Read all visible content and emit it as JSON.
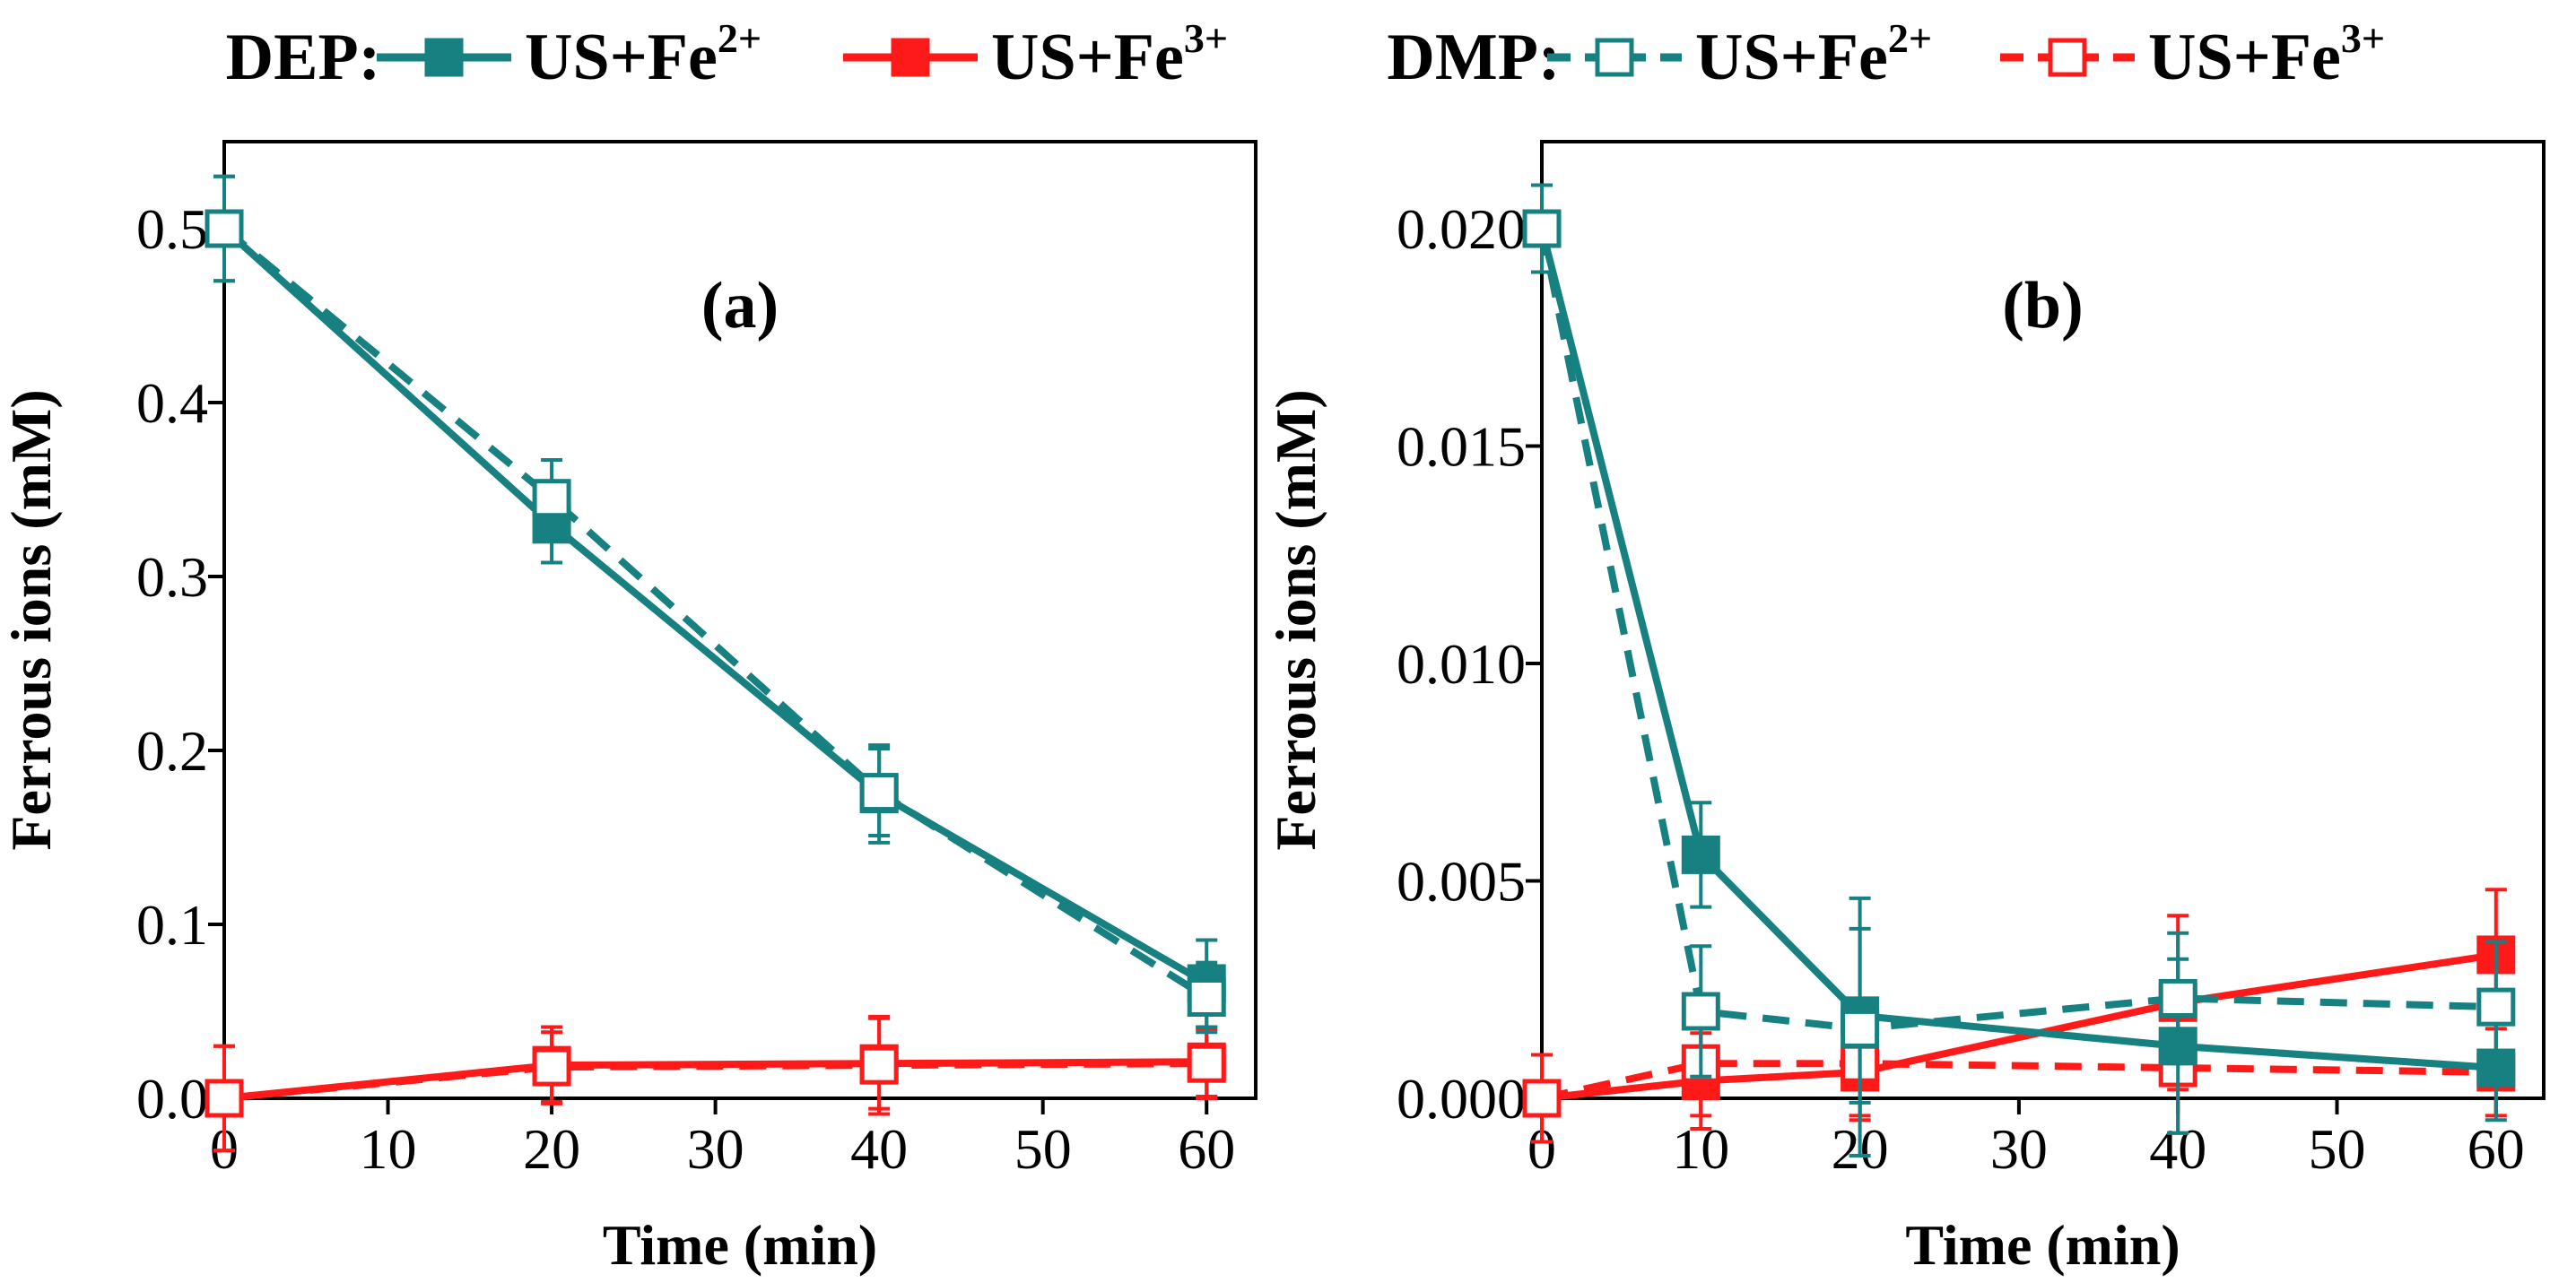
{
  "colors": {
    "teal": "#178080",
    "red": "#ff1a1a"
  },
  "legend": {
    "groups": [
      {
        "label": "DEP:",
        "entries": [
          {
            "name": "DEP US+Fe2+",
            "text": "US+Fe",
            "sup": "2+",
            "color": "#178080",
            "dashed": false,
            "filled": true
          },
          {
            "name": "DEP US+Fe3+",
            "text": "US+Fe",
            "sup": "3+",
            "color": "#ff1a1a",
            "dashed": false,
            "filled": true
          }
        ]
      },
      {
        "label": "DMP:",
        "entries": [
          {
            "name": "DMP US+Fe2+",
            "text": "US+Fe",
            "sup": "2+",
            "color": "#178080",
            "dashed": true,
            "filled": false
          },
          {
            "name": "DMP US+Fe3+",
            "text": "US+Fe",
            "sup": "3+",
            "color": "#ff1a1a",
            "dashed": true,
            "filled": false
          }
        ]
      }
    ]
  },
  "chart_data": [
    {
      "type": "line",
      "panel_label": "(a)",
      "xlabel": "Time (min)",
      "ylabel": "Ferrous ions (mM)",
      "xlim": [
        0,
        63
      ],
      "ylim": [
        0,
        0.55
      ],
      "xticks": [
        0,
        10,
        20,
        30,
        40,
        50,
        60
      ],
      "xtick_labels": [
        "0",
        "10",
        "20",
        "30",
        "40",
        "50",
        "60"
      ],
      "yticks": [
        0,
        0.1,
        0.2,
        0.3,
        0.4,
        0.5
      ],
      "ytick_labels": [
        "0.0",
        "0.1",
        "0.2",
        "0.3",
        "0.4",
        "0.5"
      ],
      "series": [
        {
          "name": "DEP US+Fe2+",
          "color": "#178080",
          "dashed": false,
          "filled": true,
          "x": [
            0,
            20,
            40,
            60
          ],
          "y": [
            0.5,
            0.33,
            0.175,
            0.066
          ],
          "err": [
            0.03,
            0.022,
            0.028,
            0.025
          ]
        },
        {
          "name": "DMP US+Fe2+",
          "color": "#178080",
          "dashed": true,
          "filled": false,
          "x": [
            0,
            20,
            40,
            60
          ],
          "y": [
            0.5,
            0.345,
            0.176,
            0.058
          ],
          "err": [
            0.03,
            0.022,
            0.025,
            0.02
          ]
        },
        {
          "name": "DEP US+Fe3+",
          "color": "#ff1a1a",
          "dashed": false,
          "filled": true,
          "x": [
            0,
            20,
            40,
            60
          ],
          "y": [
            0.0,
            0.019,
            0.02,
            0.021
          ],
          "err": [
            0.03,
            0.022,
            0.026,
            0.02
          ]
        },
        {
          "name": "DMP US+Fe3+",
          "color": "#ff1a1a",
          "dashed": true,
          "filled": false,
          "x": [
            0,
            20,
            40,
            60
          ],
          "y": [
            0.0,
            0.018,
            0.019,
            0.02
          ],
          "err": [
            0.03,
            0.02,
            0.028,
            0.02
          ]
        }
      ]
    },
    {
      "type": "line",
      "panel_label": "(b)",
      "xlabel": "Time (min)",
      "ylabel": "Ferrous ions (mM)",
      "xlim": [
        0,
        63
      ],
      "ylim": [
        0,
        0.022
      ],
      "xticks": [
        0,
        10,
        20,
        30,
        40,
        50,
        60
      ],
      "xtick_labels": [
        "0",
        "10",
        "20",
        "30",
        "40",
        "50",
        "60"
      ],
      "yticks": [
        0,
        0.005,
        0.01,
        0.015,
        0.02
      ],
      "ytick_labels": [
        "0.000",
        "0.005",
        "0.010",
        "0.015",
        "0.020"
      ],
      "series": [
        {
          "name": "DEP US+Fe2+",
          "color": "#178080",
          "dashed": false,
          "filled": true,
          "x": [
            0,
            10,
            20,
            40,
            60
          ],
          "y": [
            0.02,
            0.0056,
            0.0019,
            0.0012,
            0.0007
          ],
          "err": [
            0.001,
            0.0012,
            0.002,
            0.002,
            0.0012
          ]
        },
        {
          "name": "DMP US+Fe2+",
          "color": "#178080",
          "dashed": true,
          "filled": false,
          "x": [
            0,
            10,
            20,
            40,
            60
          ],
          "y": [
            0.02,
            0.002,
            0.0016,
            0.0023,
            0.0021
          ],
          "err": [
            0.001,
            0.0015,
            0.003,
            0.0015,
            0.0015
          ]
        },
        {
          "name": "DEP US+Fe3+",
          "color": "#ff1a1a",
          "dashed": false,
          "filled": true,
          "x": [
            0,
            10,
            20,
            40,
            60
          ],
          "y": [
            0.0,
            0.0004,
            0.0006,
            0.0022,
            0.0033
          ],
          "err": [
            0.001,
            0.0011,
            0.0011,
            0.002,
            0.0015
          ]
        },
        {
          "name": "DMP US+Fe3+",
          "color": "#ff1a1a",
          "dashed": true,
          "filled": false,
          "x": [
            0,
            10,
            20,
            40,
            60
          ],
          "y": [
            0.0,
            0.0008,
            0.0008,
            0.0007,
            0.0006
          ],
          "err": [
            0.001,
            0.0012,
            0.0012,
            0.0015,
            0.001
          ]
        }
      ]
    }
  ]
}
